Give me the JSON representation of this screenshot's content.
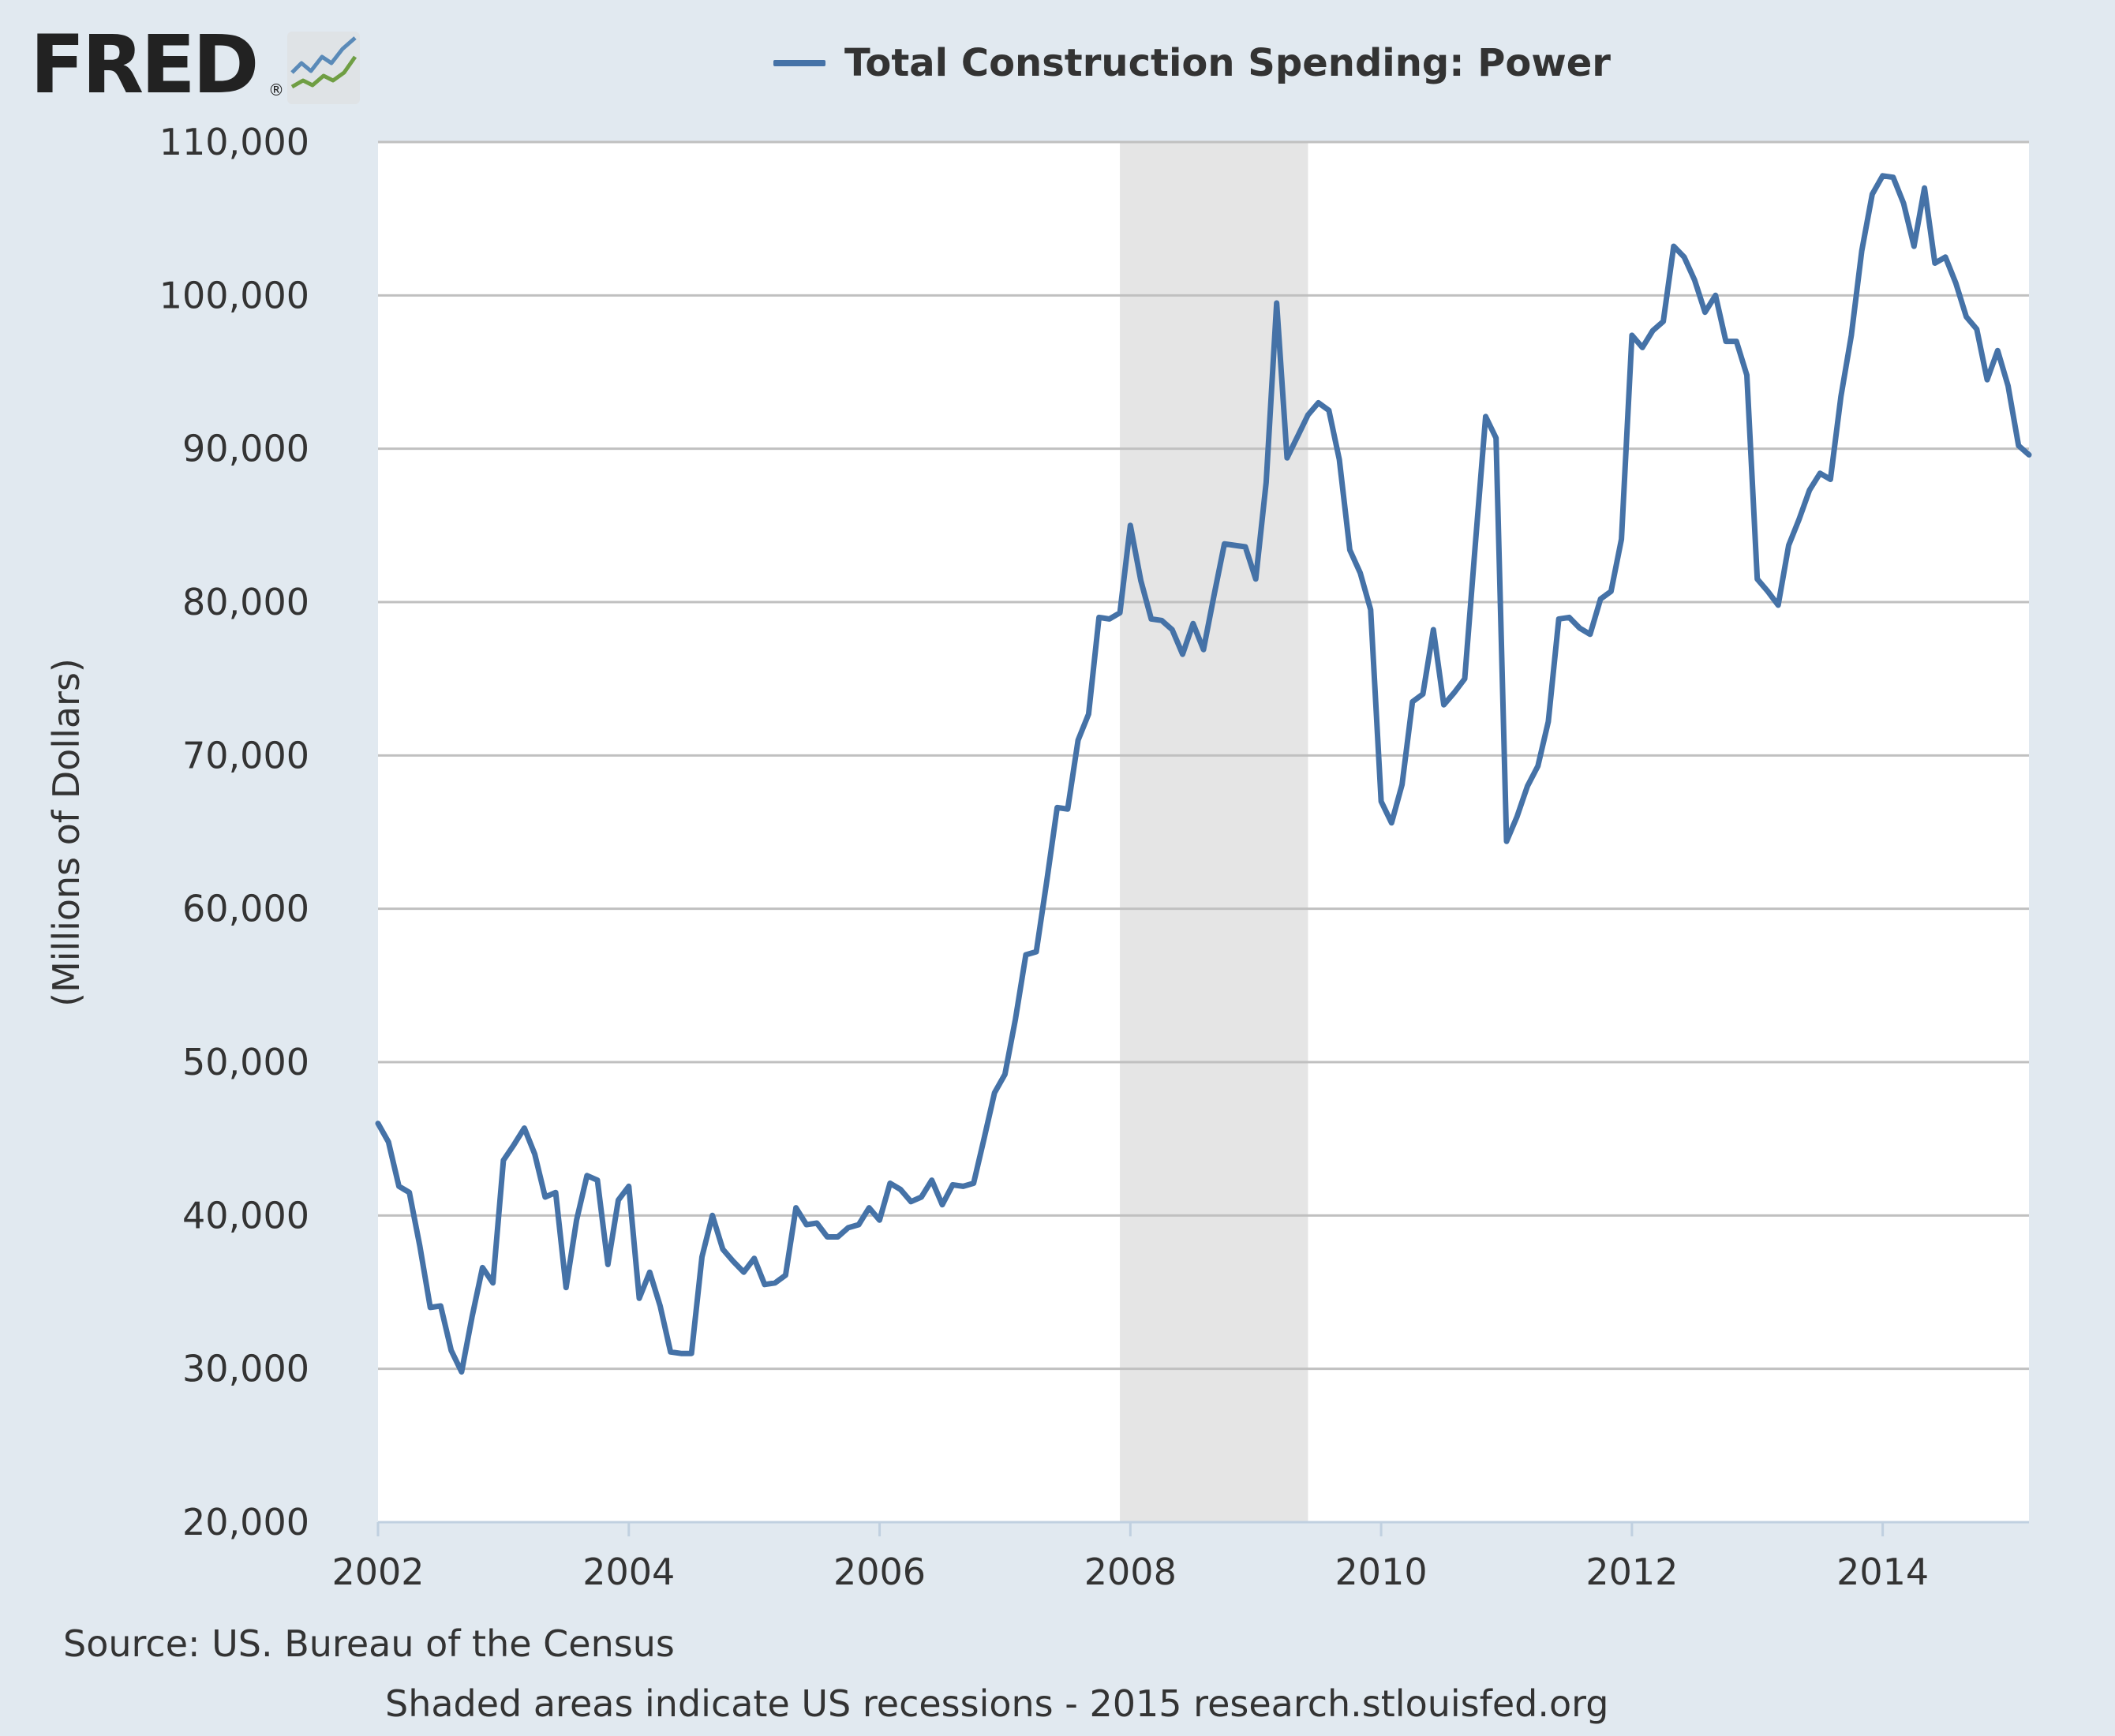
{
  "logo": {
    "text": "FRED",
    "registered": "®"
  },
  "colors": {
    "line": "#4572a7",
    "recession": "#e5e5e5",
    "grid": "#c0c0c0",
    "plot_bg": "#ffffff",
    "page_bg": "#e1e9f0"
  },
  "chart_data": {
    "type": "line",
    "title": "",
    "ylabel": "(Millions of Dollars)",
    "xlabel": "",
    "legend": "top-center",
    "grid": true,
    "xlim": [
      2002.0,
      2015.1667
    ],
    "ylim": [
      20000,
      110000
    ],
    "x_ticks": [
      2002,
      2004,
      2006,
      2008,
      2010,
      2012,
      2014
    ],
    "x_tick_labels": [
      "2002",
      "2004",
      "2006",
      "2008",
      "2010",
      "2012",
      "2014"
    ],
    "y_ticks": [
      20000,
      30000,
      40000,
      50000,
      60000,
      70000,
      80000,
      90000,
      100000,
      110000
    ],
    "y_tick_labels": [
      "20,000",
      "30,000",
      "40,000",
      "50,000",
      "60,000",
      "70,000",
      "80,000",
      "90,000",
      "100,000",
      "110,000"
    ],
    "recessions": [
      {
        "start": "2007-12",
        "end": "2009-06"
      }
    ],
    "series": [
      {
        "name": "Total Construction Spending: Power",
        "points": [
          [
            "2002-01",
            46000
          ],
          [
            "2002-02",
            44800
          ],
          [
            "2002-03",
            41900
          ],
          [
            "2002-04",
            41500
          ],
          [
            "2002-05",
            38000
          ],
          [
            "2002-06",
            34000
          ],
          [
            "2002-07",
            34100
          ],
          [
            "2002-08",
            31200
          ],
          [
            "2002-09",
            29800
          ],
          [
            "2002-10",
            33400
          ],
          [
            "2002-11",
            36600
          ],
          [
            "2002-12",
            35600
          ],
          [
            "2003-01",
            43600
          ],
          [
            "2003-02",
            44600
          ],
          [
            "2003-03",
            45700
          ],
          [
            "2003-04",
            44000
          ],
          [
            "2003-05",
            41200
          ],
          [
            "2003-06",
            41500
          ],
          [
            "2003-07",
            35300
          ],
          [
            "2003-08",
            39700
          ],
          [
            "2003-09",
            42600
          ],
          [
            "2003-10",
            42300
          ],
          [
            "2003-11",
            36800
          ],
          [
            "2003-12",
            41000
          ],
          [
            "2004-01",
            41900
          ],
          [
            "2004-02",
            34600
          ],
          [
            "2004-03",
            36300
          ],
          [
            "2004-04",
            34100
          ],
          [
            "2004-05",
            31100
          ],
          [
            "2004-06",
            31000
          ],
          [
            "2004-07",
            31000
          ],
          [
            "2004-08",
            37300
          ],
          [
            "2004-09",
            40000
          ],
          [
            "2004-10",
            37800
          ],
          [
            "2004-11",
            37000
          ],
          [
            "2004-12",
            36300
          ],
          [
            "2005-01",
            37200
          ],
          [
            "2005-02",
            35500
          ],
          [
            "2005-03",
            35600
          ],
          [
            "2005-04",
            36100
          ],
          [
            "2005-05",
            40500
          ],
          [
            "2005-06",
            39400
          ],
          [
            "2005-07",
            39500
          ],
          [
            "2005-08",
            38600
          ],
          [
            "2005-09",
            38600
          ],
          [
            "2005-10",
            39200
          ],
          [
            "2005-11",
            39400
          ],
          [
            "2005-12",
            40500
          ],
          [
            "2006-01",
            39700
          ],
          [
            "2006-02",
            42100
          ],
          [
            "2006-03",
            41700
          ],
          [
            "2006-04",
            40900
          ],
          [
            "2006-05",
            41200
          ],
          [
            "2006-06",
            42300
          ],
          [
            "2006-07",
            40700
          ],
          [
            "2006-08",
            42000
          ],
          [
            "2006-09",
            41900
          ],
          [
            "2006-10",
            42100
          ],
          [
            "2006-11",
            45000
          ],
          [
            "2006-12",
            48000
          ],
          [
            "2007-01",
            49200
          ],
          [
            "2007-02",
            52800
          ],
          [
            "2007-03",
            57000
          ],
          [
            "2007-04",
            57200
          ],
          [
            "2007-05",
            61800
          ],
          [
            "2007-06",
            66600
          ],
          [
            "2007-07",
            66500
          ],
          [
            "2007-08",
            71000
          ],
          [
            "2007-09",
            72700
          ],
          [
            "2007-10",
            79000
          ],
          [
            "2007-11",
            78900
          ],
          [
            "2007-12",
            79300
          ],
          [
            "2008-01",
            85000
          ],
          [
            "2008-02",
            81400
          ],
          [
            "2008-03",
            78900
          ],
          [
            "2008-04",
            78800
          ],
          [
            "2008-05",
            78200
          ],
          [
            "2008-06",
            76600
          ],
          [
            "2008-07",
            78600
          ],
          [
            "2008-08",
            76900
          ],
          [
            "2008-09",
            80400
          ],
          [
            "2008-10",
            83800
          ],
          [
            "2008-11",
            83700
          ],
          [
            "2008-12",
            83600
          ],
          [
            "2009-01",
            81500
          ],
          [
            "2009-02",
            87800
          ],
          [
            "2009-03",
            99500
          ],
          [
            "2009-04",
            89400
          ],
          [
            "2009-05",
            90800
          ],
          [
            "2009-06",
            92200
          ],
          [
            "2009-07",
            93000
          ],
          [
            "2009-08",
            92500
          ],
          [
            "2009-09",
            89300
          ],
          [
            "2009-10",
            83400
          ],
          [
            "2009-11",
            81900
          ],
          [
            "2009-12",
            79500
          ],
          [
            "2010-01",
            67000
          ],
          [
            "2010-02",
            65600
          ],
          [
            "2010-03",
            68100
          ],
          [
            "2010-04",
            73500
          ],
          [
            "2010-05",
            74000
          ],
          [
            "2010-06",
            78200
          ],
          [
            "2010-07",
            73300
          ],
          [
            "2010-08",
            74100
          ],
          [
            "2010-09",
            75000
          ],
          [
            "2010-10",
            83600
          ],
          [
            "2010-11",
            92100
          ],
          [
            "2010-12",
            90700
          ],
          [
            "2011-01",
            64400
          ],
          [
            "2011-02",
            66000
          ],
          [
            "2011-03",
            68000
          ],
          [
            "2011-04",
            69300
          ],
          [
            "2011-05",
            72200
          ],
          [
            "2011-06",
            78900
          ],
          [
            "2011-07",
            79000
          ],
          [
            "2011-08",
            78300
          ],
          [
            "2011-09",
            77900
          ],
          [
            "2011-10",
            80200
          ],
          [
            "2011-11",
            80700
          ],
          [
            "2011-12",
            84100
          ],
          [
            "2012-01",
            97400
          ],
          [
            "2012-02",
            96600
          ],
          [
            "2012-03",
            97700
          ],
          [
            "2012-04",
            98300
          ],
          [
            "2012-05",
            103200
          ],
          [
            "2012-06",
            102500
          ],
          [
            "2012-07",
            101000
          ],
          [
            "2012-08",
            98900
          ],
          [
            "2012-09",
            100000
          ],
          [
            "2012-10",
            97000
          ],
          [
            "2012-11",
            97000
          ],
          [
            "2012-12",
            94800
          ],
          [
            "2013-01",
            81500
          ],
          [
            "2013-02",
            80700
          ],
          [
            "2013-03",
            79800
          ],
          [
            "2013-04",
            83700
          ],
          [
            "2013-05",
            85400
          ],
          [
            "2013-06",
            87300
          ],
          [
            "2013-07",
            88400
          ],
          [
            "2013-08",
            88000
          ],
          [
            "2013-09",
            93400
          ],
          [
            "2013-10",
            97400
          ],
          [
            "2013-11",
            102900
          ],
          [
            "2013-12",
            106600
          ],
          [
            "2014-01",
            107800
          ],
          [
            "2014-02",
            107700
          ],
          [
            "2014-03",
            106000
          ],
          [
            "2014-04",
            103200
          ],
          [
            "2014-05",
            107000
          ],
          [
            "2014-06",
            102100
          ],
          [
            "2014-07",
            102500
          ],
          [
            "2014-08",
            100800
          ],
          [
            "2014-09",
            98600
          ],
          [
            "2014-10",
            97800
          ],
          [
            "2014-11",
            94500
          ],
          [
            "2014-12",
            96400
          ],
          [
            "2015-01",
            94100
          ],
          [
            "2015-02",
            90200
          ],
          [
            "2015-03",
            89600
          ]
        ]
      }
    ]
  },
  "footer": {
    "source": "Source: US. Bureau of the Census",
    "note": "Shaded areas indicate US recessions - 2015 research.stlouisfed.org"
  }
}
